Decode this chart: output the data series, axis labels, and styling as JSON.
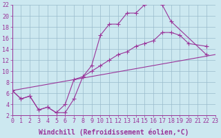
{
  "background_color": "#cce8f0",
  "grid_color": "#99bbcc",
  "line_color": "#993399",
  "marker": "+",
  "xlim": [
    0,
    23
  ],
  "ylim": [
    2,
    22
  ],
  "xlabel": "Windchill (Refroidissement éolien,°C)",
  "xticks": [
    0,
    1,
    2,
    3,
    4,
    5,
    6,
    7,
    8,
    9,
    10,
    11,
    12,
    13,
    14,
    15,
    16,
    17,
    18,
    19,
    20,
    21,
    22,
    23
  ],
  "yticks": [
    2,
    4,
    6,
    8,
    10,
    12,
    14,
    16,
    18,
    20,
    22
  ],
  "series1_x": [
    0,
    1,
    2,
    3,
    4,
    5,
    6,
    7,
    8,
    9,
    10,
    11,
    12,
    13,
    14,
    15,
    16,
    17,
    18,
    22
  ],
  "series1_y": [
    6.5,
    5.0,
    5.5,
    3.0,
    3.5,
    2.5,
    2.5,
    5.0,
    9.0,
    11.0,
    16.5,
    18.5,
    18.5,
    20.5,
    20.5,
    22.0,
    22.5,
    22.0,
    19.0,
    13.0
  ],
  "series2_x": [
    0,
    1,
    2,
    3,
    4,
    5,
    6,
    7,
    8,
    9,
    10,
    11,
    12,
    13,
    14,
    15,
    16,
    17,
    18,
    19,
    20,
    22
  ],
  "series2_y": [
    6.5,
    5.0,
    5.5,
    3.0,
    3.5,
    2.5,
    4.0,
    8.5,
    9.0,
    10.0,
    11.0,
    12.0,
    13.0,
    13.5,
    14.5,
    15.0,
    15.5,
    17.0,
    17.0,
    16.5,
    15.0,
    14.5
  ],
  "series3_x": [
    0,
    23
  ],
  "series3_y": [
    6.5,
    13.0
  ],
  "font_size_xlabel": 7,
  "font_size_tick": 6
}
